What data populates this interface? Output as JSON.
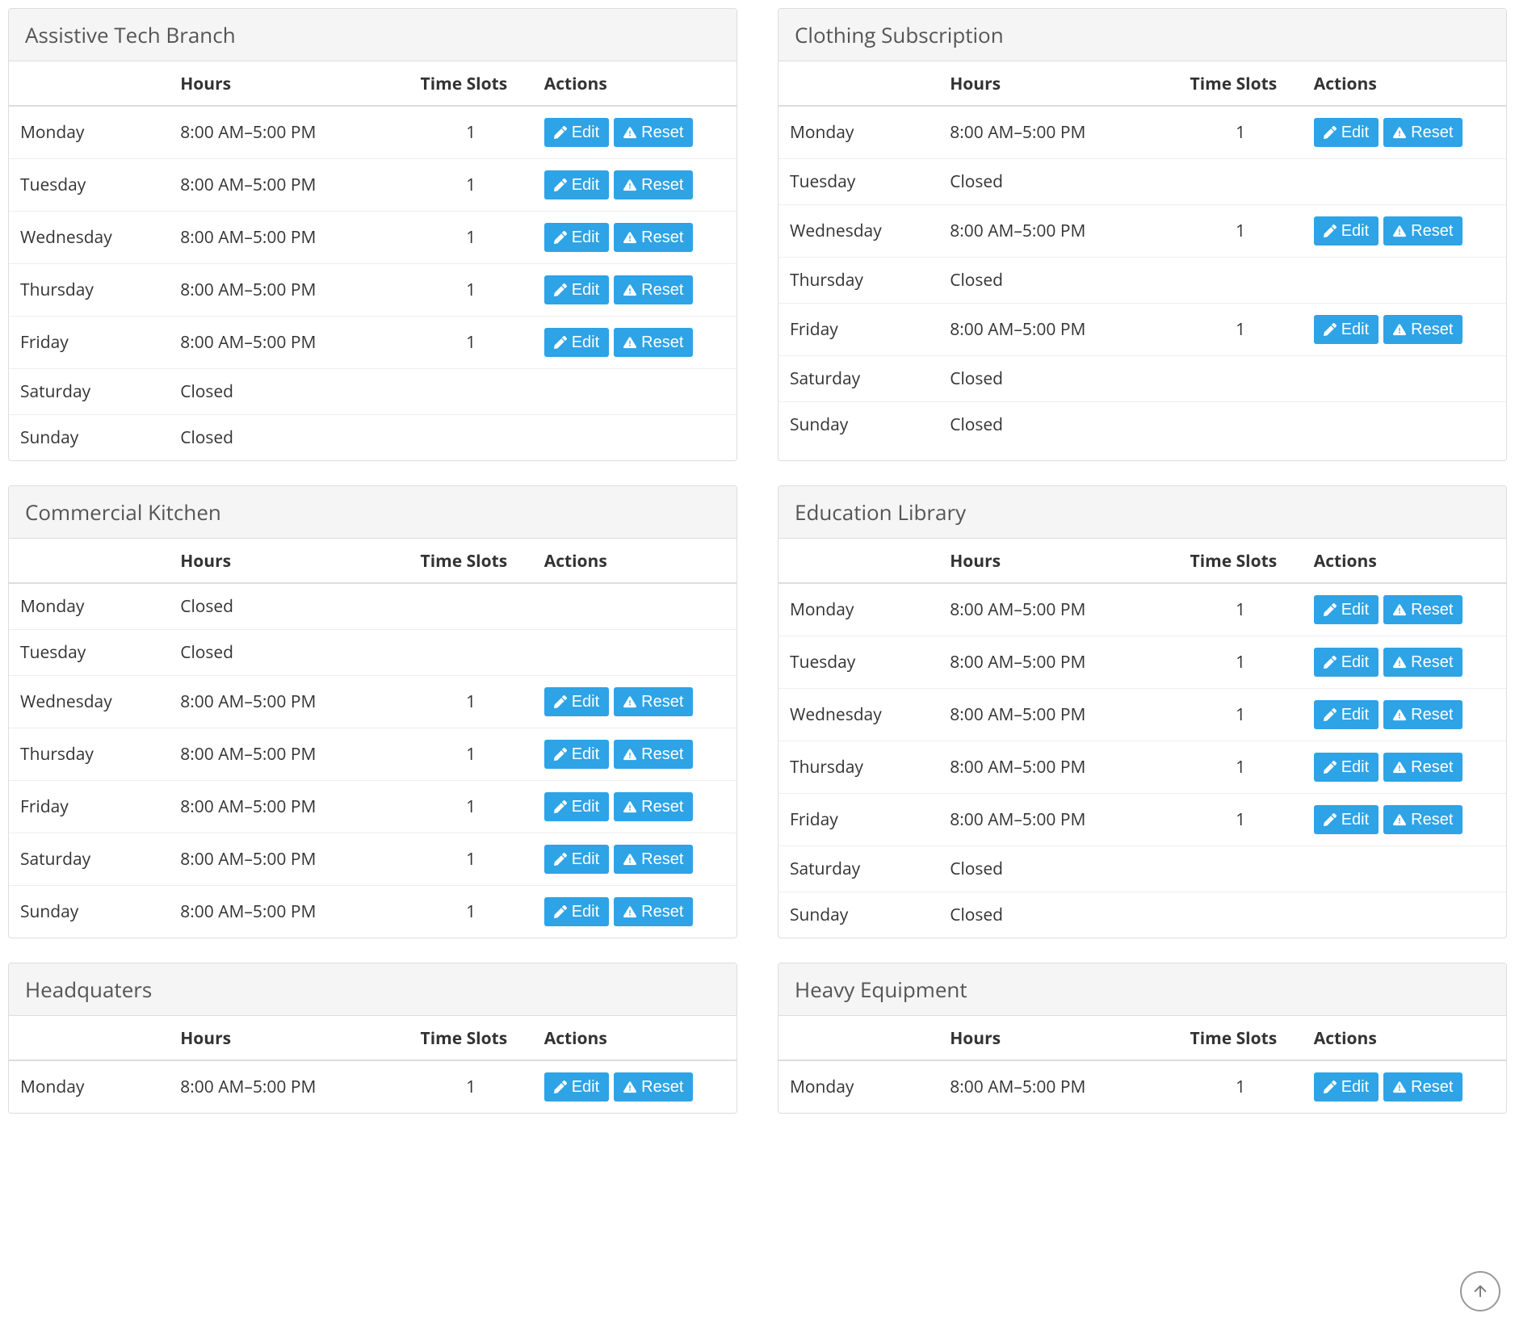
{
  "labels": {
    "hours_header": "Hours",
    "slots_header": "Time Slots",
    "actions_header": "Actions",
    "edit": "Edit",
    "reset": "Reset",
    "closed": "Closed"
  },
  "colors": {
    "button_bg": "#2ea3e6",
    "button_text": "#ffffff",
    "panel_border": "#dddddd",
    "panel_header_bg": "#f5f5f5",
    "row_border": "#eeeeee",
    "text": "#333333"
  },
  "panels": [
    {
      "title": "Assistive Tech Branch",
      "rows": [
        {
          "day": "Monday",
          "hours": "8:00 AM–5:00 PM",
          "slots": "1",
          "actions": true
        },
        {
          "day": "Tuesday",
          "hours": "8:00 AM–5:00 PM",
          "slots": "1",
          "actions": true
        },
        {
          "day": "Wednesday",
          "hours": "8:00 AM–5:00 PM",
          "slots": "1",
          "actions": true
        },
        {
          "day": "Thursday",
          "hours": "8:00 AM–5:00 PM",
          "slots": "1",
          "actions": true
        },
        {
          "day": "Friday",
          "hours": "8:00 AM–5:00 PM",
          "slots": "1",
          "actions": true
        },
        {
          "day": "Saturday",
          "hours": "Closed",
          "slots": "",
          "actions": false
        },
        {
          "day": "Sunday",
          "hours": "Closed",
          "slots": "",
          "actions": false
        }
      ]
    },
    {
      "title": "Clothing Subscription",
      "rows": [
        {
          "day": "Monday",
          "hours": "8:00 AM–5:00 PM",
          "slots": "1",
          "actions": true
        },
        {
          "day": "Tuesday",
          "hours": "Closed",
          "slots": "",
          "actions": false
        },
        {
          "day": "Wednesday",
          "hours": "8:00 AM–5:00 PM",
          "slots": "1",
          "actions": true
        },
        {
          "day": "Thursday",
          "hours": "Closed",
          "slots": "",
          "actions": false
        },
        {
          "day": "Friday",
          "hours": "8:00 AM–5:00 PM",
          "slots": "1",
          "actions": true
        },
        {
          "day": "Saturday",
          "hours": "Closed",
          "slots": "",
          "actions": false
        },
        {
          "day": "Sunday",
          "hours": "Closed",
          "slots": "",
          "actions": false
        }
      ]
    },
    {
      "title": "Commercial Kitchen",
      "rows": [
        {
          "day": "Monday",
          "hours": "Closed",
          "slots": "",
          "actions": false
        },
        {
          "day": "Tuesday",
          "hours": "Closed",
          "slots": "",
          "actions": false
        },
        {
          "day": "Wednesday",
          "hours": "8:00 AM–5:00 PM",
          "slots": "1",
          "actions": true
        },
        {
          "day": "Thursday",
          "hours": "8:00 AM–5:00 PM",
          "slots": "1",
          "actions": true
        },
        {
          "day": "Friday",
          "hours": "8:00 AM–5:00 PM",
          "slots": "1",
          "actions": true
        },
        {
          "day": "Saturday",
          "hours": "8:00 AM–5:00 PM",
          "slots": "1",
          "actions": true
        },
        {
          "day": "Sunday",
          "hours": "8:00 AM–5:00 PM",
          "slots": "1",
          "actions": true
        }
      ]
    },
    {
      "title": "Education Library",
      "rows": [
        {
          "day": "Monday",
          "hours": "8:00 AM–5:00 PM",
          "slots": "1",
          "actions": true
        },
        {
          "day": "Tuesday",
          "hours": "8:00 AM–5:00 PM",
          "slots": "1",
          "actions": true
        },
        {
          "day": "Wednesday",
          "hours": "8:00 AM–5:00 PM",
          "slots": "1",
          "actions": true
        },
        {
          "day": "Thursday",
          "hours": "8:00 AM–5:00 PM",
          "slots": "1",
          "actions": true
        },
        {
          "day": "Friday",
          "hours": "8:00 AM–5:00 PM",
          "slots": "1",
          "actions": true
        },
        {
          "day": "Saturday",
          "hours": "Closed",
          "slots": "",
          "actions": false
        },
        {
          "day": "Sunday",
          "hours": "Closed",
          "slots": "",
          "actions": false
        }
      ]
    },
    {
      "title": "Headquaters",
      "rows": [
        {
          "day": "Monday",
          "hours": "8:00 AM–5:00 PM",
          "slots": "1",
          "actions": true
        }
      ]
    },
    {
      "title": "Heavy Equipment",
      "rows": [
        {
          "day": "Monday",
          "hours": "8:00 AM–5:00 PM",
          "slots": "1",
          "actions": true
        }
      ]
    }
  ]
}
